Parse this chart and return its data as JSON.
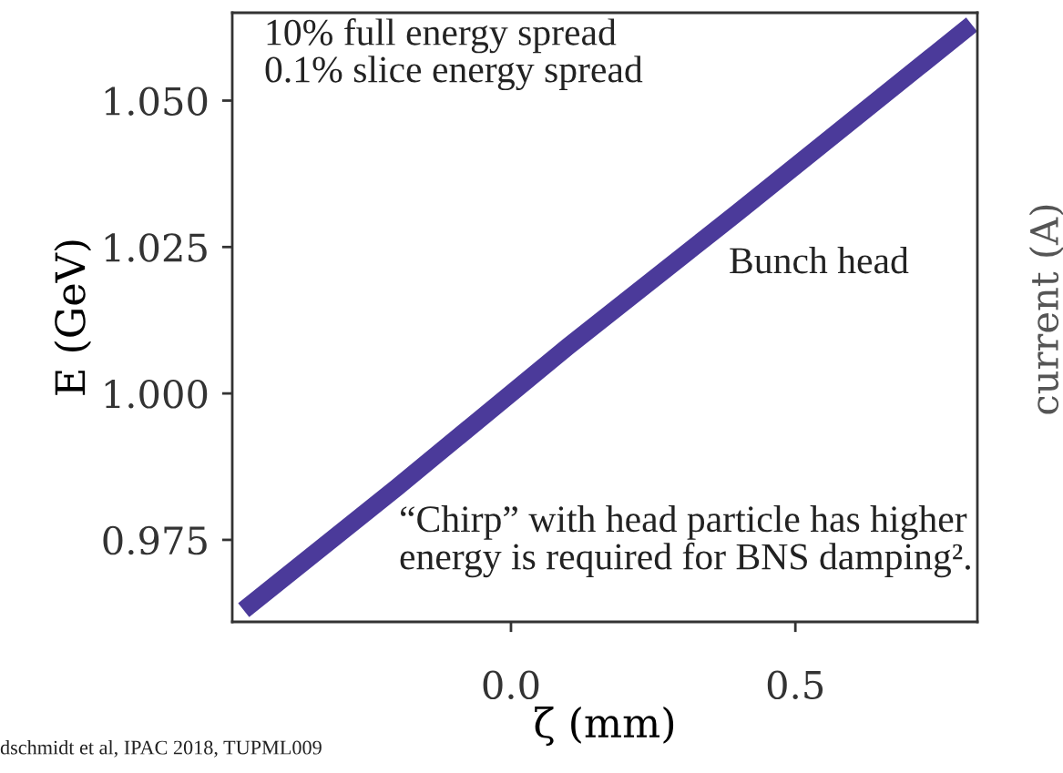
{
  "chart_data": {
    "type": "line",
    "xlabel": "ζ (mm)",
    "ylabel": "E (GeV)",
    "y2label": "current (A)",
    "series": [
      {
        "x": [
          -0.47,
          -0.2,
          0.1,
          0.4,
          0.81
        ],
        "values": [
          0.963,
          0.984,
          1.008,
          1.031,
          1.063
        ],
        "color": "#4b3a9a"
      }
    ],
    "xlim": [
      -0.49,
      0.82
    ],
    "ylim": [
      0.961,
      1.065
    ],
    "xticks": [
      {
        "value": 0.0,
        "label": "0.0"
      },
      {
        "value": 0.5,
        "label": "0.5"
      }
    ],
    "yticks": [
      {
        "value": 0.975,
        "label": "0.975"
      },
      {
        "value": 1.0,
        "label": "1.000"
      },
      {
        "value": 1.025,
        "label": "1.025"
      },
      {
        "value": 1.05,
        "label": "1.050"
      }
    ],
    "grid": false,
    "legend": false,
    "marker": "none",
    "line_style": "solid",
    "annotations": [
      "10% full energy spread\n0.1% slice energy spread",
      "Bunch head",
      "“Chirp” with head particle has higher\nenergy is required for BNS damping².",
      "dschmidt et al, IPAC 2018, TUPML009"
    ]
  }
}
